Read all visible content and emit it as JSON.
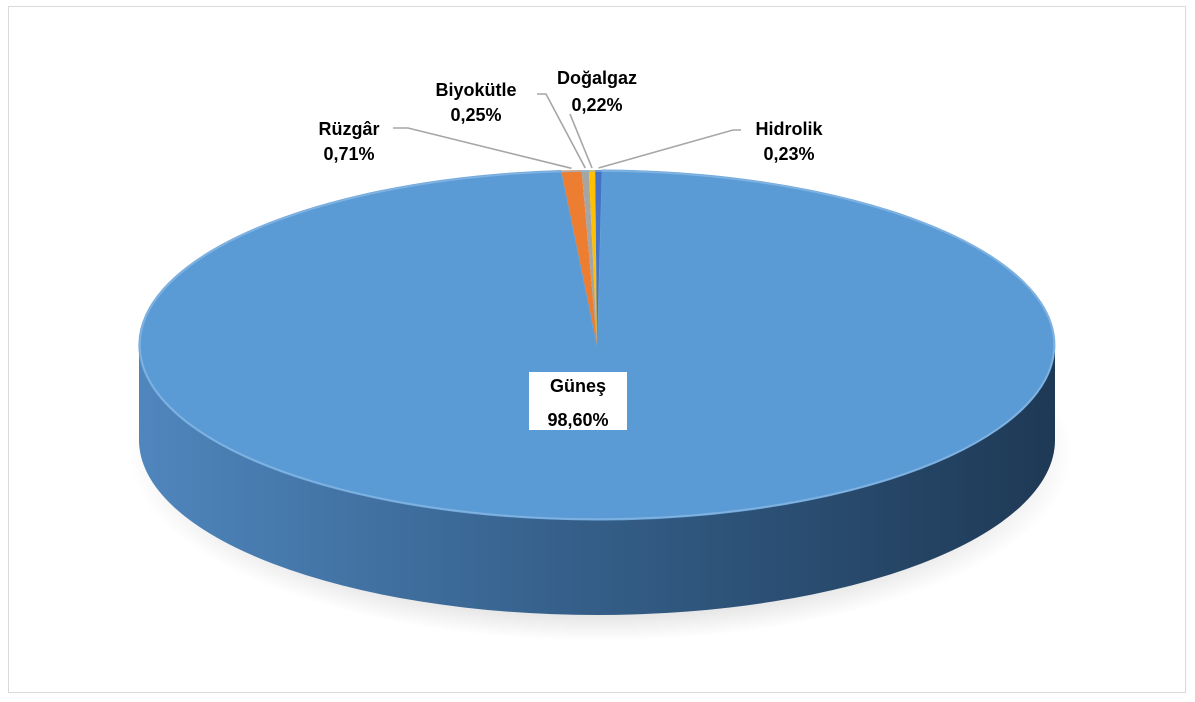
{
  "chart_data": {
    "type": "pie",
    "style": "3d",
    "slices": [
      {
        "label": "Güneş",
        "value": 98.6,
        "display": "98,60%",
        "color": "#5B9BD5"
      },
      {
        "label": "Rüzgâr",
        "value": 0.71,
        "display": "0,71%",
        "color": "#ED7D31"
      },
      {
        "label": "Biyokütle",
        "value": 0.25,
        "display": "0,25%",
        "color": "#A5A5A5"
      },
      {
        "label": "Doğalgaz",
        "value": 0.22,
        "display": "0,22%",
        "color": "#FFC000"
      },
      {
        "label": "Hidrolik",
        "value": 0.23,
        "display": "0,23%",
        "color": "#4472C4"
      }
    ],
    "legend": "none",
    "data_labels": "category-and-percentage"
  }
}
